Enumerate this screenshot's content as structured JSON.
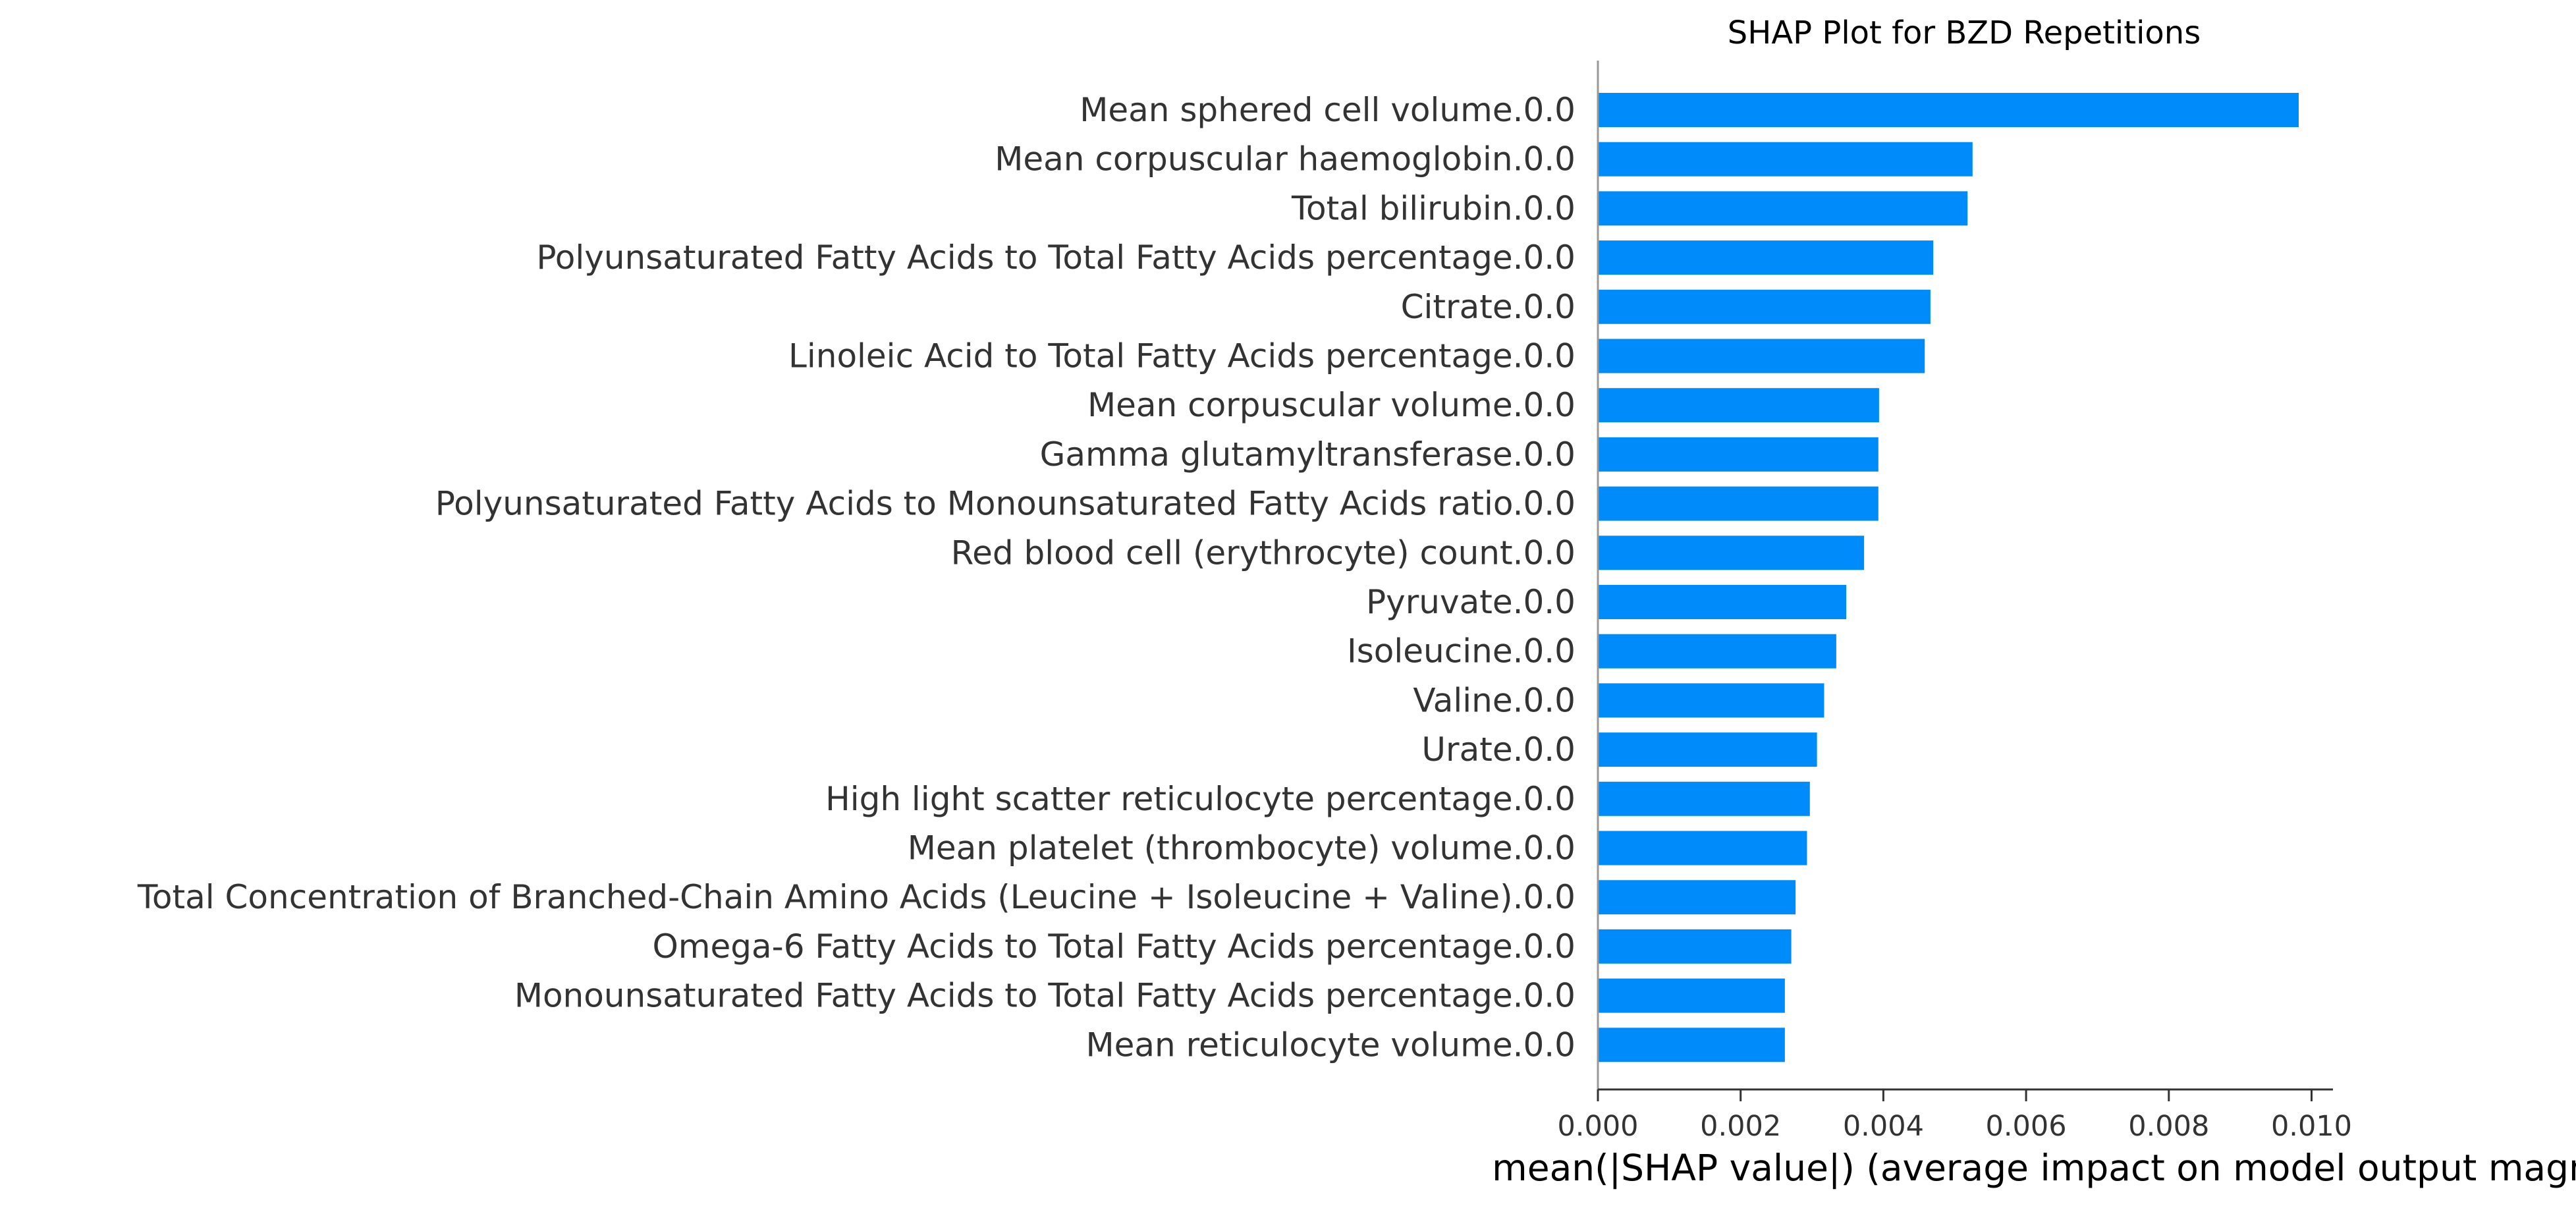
{
  "chart_data": {
    "type": "bar",
    "orientation": "horizontal",
    "title": "SHAP Plot for BZD Repetitions",
    "xlabel": "mean(|SHAP value|) (average impact on model output magnitude)",
    "ylabel": "",
    "xlim": [
      0,
      0.0103
    ],
    "x_ticks": [
      "0.000",
      "0.002",
      "0.004",
      "0.006",
      "0.008",
      "0.010"
    ],
    "grid": false,
    "legend": "none",
    "bar_color": "#008bfb",
    "categories": [
      "Mean sphered cell volume.0.0",
      "Mean corpuscular haemoglobin.0.0",
      "Total bilirubin.0.0",
      "Polyunsaturated Fatty Acids to Total Fatty Acids percentage.0.0",
      "Citrate.0.0",
      "Linoleic Acid to Total Fatty Acids percentage.0.0",
      "Mean corpuscular volume.0.0",
      "Gamma glutamyltransferase.0.0",
      "Polyunsaturated Fatty Acids to Monounsaturated Fatty Acids ratio.0.0",
      "Red blood cell (erythrocyte) count.0.0",
      "Pyruvate.0.0",
      "Isoleucine.0.0",
      "Valine.0.0",
      "Urate.0.0",
      "High light scatter reticulocyte percentage.0.0",
      "Mean platelet (thrombocyte) volume.0.0",
      "Total Concentration of Branched-Chain Amino Acids (Leucine + Isoleucine + Valine).0.0",
      "Omega-6 Fatty Acids to Total Fatty Acids percentage.0.0",
      "Monounsaturated Fatty Acids to Total Fatty Acids percentage.0.0",
      "Mean reticulocyte volume.0.0"
    ],
    "values": [
      0.00982,
      0.00525,
      0.00518,
      0.0047,
      0.00466,
      0.00458,
      0.00394,
      0.00393,
      0.00393,
      0.00373,
      0.00348,
      0.00334,
      0.00317,
      0.00307,
      0.00297,
      0.00293,
      0.00277,
      0.00271,
      0.00262,
      0.00262
    ]
  }
}
